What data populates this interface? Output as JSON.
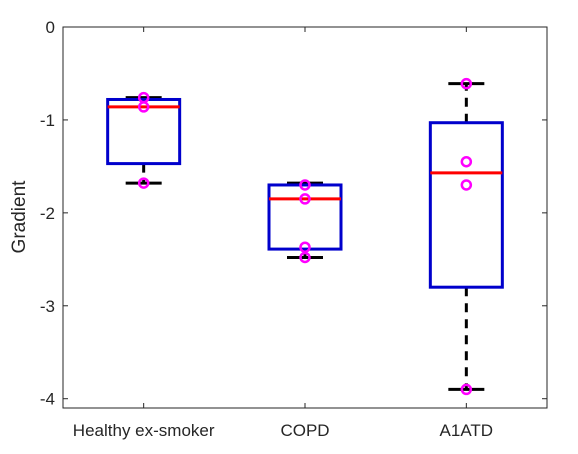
{
  "chart_data": {
    "type": "box",
    "title": "",
    "xlabel": "",
    "ylabel": "Gradient",
    "ylim": [
      -4.1,
      0
    ],
    "yticks": [
      0,
      -1,
      -2,
      -3,
      -4
    ],
    "ytick_labels": [
      "0",
      "-1",
      "-2",
      "-3",
      "-4"
    ],
    "categories": [
      "Healthy ex-smoker",
      "COPD",
      "A1ATD"
    ],
    "grid": false,
    "legend": "none",
    "boxes": [
      {
        "category": "Healthy ex-smoker",
        "whisker_low": -1.68,
        "q1": -1.47,
        "median": -0.86,
        "q3": -0.78,
        "whisker_high": -0.76
      },
      {
        "category": "COPD",
        "whisker_low": -2.48,
        "q1": -2.39,
        "median": -1.85,
        "q3": -1.7,
        "whisker_high": -1.68
      },
      {
        "category": "A1ATD",
        "whisker_low": -3.9,
        "q1": -2.8,
        "median": -1.57,
        "q3": -1.03,
        "whisker_high": -0.61
      }
    ],
    "points": [
      {
        "category": "Healthy ex-smoker",
        "values": [
          -0.76,
          -0.86,
          -1.68
        ]
      },
      {
        "category": "COPD",
        "values": [
          -1.7,
          -1.85,
          -2.37,
          -2.48
        ]
      },
      {
        "category": "A1ATD",
        "values": [
          -0.61,
          -1.45,
          -1.7,
          -3.9
        ]
      }
    ],
    "colors": {
      "box": "#0000cc",
      "median": "#ff0000",
      "whisker": "#000000",
      "points": "#ff00ff",
      "axis": "#262626"
    }
  }
}
